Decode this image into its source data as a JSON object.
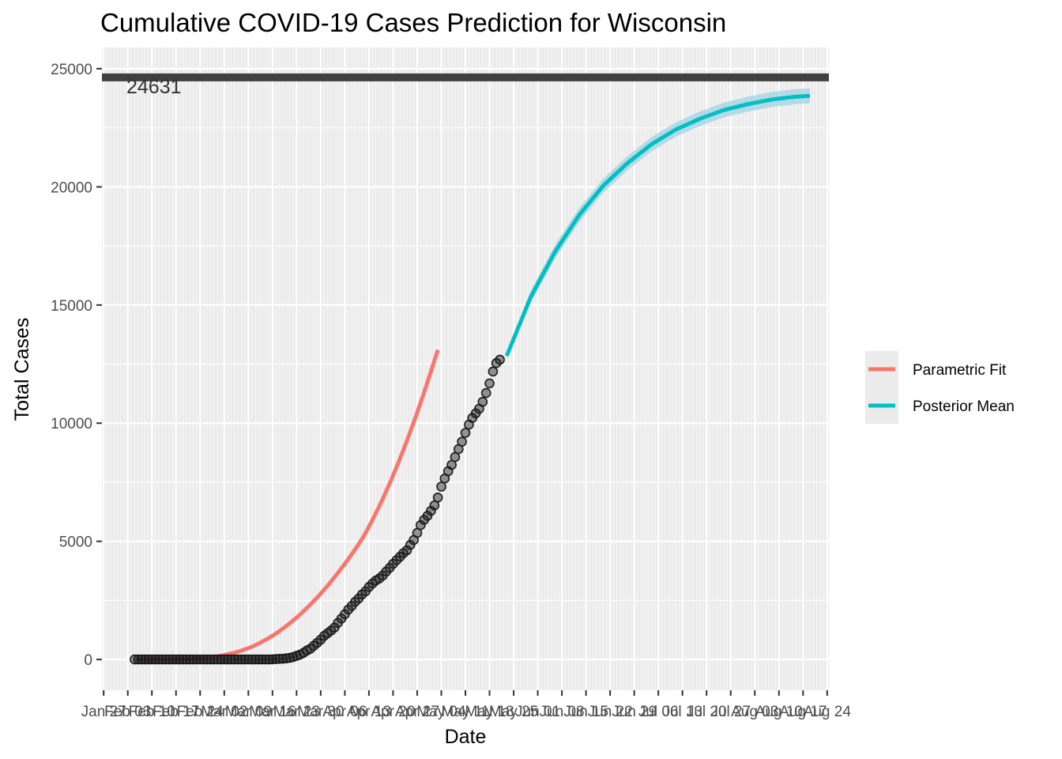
{
  "chart_data": {
    "type": "line",
    "title": "Cumulative COVID-19 Cases Prediction for Wisconsin",
    "xlabel": "Date",
    "ylabel": "Total Cases",
    "ylim": [
      -1300,
      25900
    ],
    "xlim_days_from_jan27": [
      -0.5,
      210.5
    ],
    "y_ticks": [
      0,
      5000,
      10000,
      15000,
      20000,
      25000
    ],
    "y_tick_labels": [
      "0",
      "5000",
      "10000",
      "15000",
      "20000",
      "25000"
    ],
    "x_ticks": [
      {
        "date": "2020-01-27",
        "label": "Jan 27"
      },
      {
        "date": "2020-02-03",
        "label": "Feb 03"
      },
      {
        "date": "2020-02-10",
        "label": "Feb 10"
      },
      {
        "date": "2020-02-17",
        "label": "Feb 17"
      },
      {
        "date": "2020-02-24",
        "label": "Feb 24"
      },
      {
        "date": "2020-03-02",
        "label": "Mar 02"
      },
      {
        "date": "2020-03-09",
        "label": "Mar 09"
      },
      {
        "date": "2020-03-16",
        "label": "Mar 16"
      },
      {
        "date": "2020-03-23",
        "label": "Mar 23"
      },
      {
        "date": "2020-03-30",
        "label": "Mar 30"
      },
      {
        "date": "2020-04-06",
        "label": "Apr 06"
      },
      {
        "date": "2020-04-13",
        "label": "Apr 13"
      },
      {
        "date": "2020-04-20",
        "label": "Apr 20"
      },
      {
        "date": "2020-04-27",
        "label": "Apr 27"
      },
      {
        "date": "2020-05-04",
        "label": "May 04"
      },
      {
        "date": "2020-05-11",
        "label": "May 11"
      },
      {
        "date": "2020-05-18",
        "label": "May 18"
      },
      {
        "date": "2020-05-25",
        "label": "May 25"
      },
      {
        "date": "2020-06-01",
        "label": "Jun 01"
      },
      {
        "date": "2020-06-08",
        "label": "Jun 08"
      },
      {
        "date": "2020-06-15",
        "label": "Jun 15"
      },
      {
        "date": "2020-06-22",
        "label": "Jun 22"
      },
      {
        "date": "2020-06-29",
        "label": "Jun 29"
      },
      {
        "date": "2020-07-06",
        "label": "Jul 06"
      },
      {
        "date": "2020-07-13",
        "label": "Jul 13"
      },
      {
        "date": "2020-07-20",
        "label": "Jul 20"
      },
      {
        "date": "2020-07-27",
        "label": "Jul 27"
      },
      {
        "date": "2020-08-03",
        "label": "Aug 03"
      },
      {
        "date": "2020-08-10",
        "label": "Aug 10"
      },
      {
        "date": "2020-08-17",
        "label": "Aug 17"
      },
      {
        "date": "2020-08-24",
        "label": "Aug 24"
      }
    ],
    "hline": {
      "value": 24631,
      "label": "24631",
      "color": "#404040"
    },
    "legend": {
      "placement": "right",
      "entries": [
        {
          "label": "Parametric Fit",
          "color": "#F8766D"
        },
        {
          "label": "Posterior Mean",
          "color": "#00BFC4"
        }
      ]
    },
    "colors": {
      "panel_background": "#EBEBEB",
      "grid": "#FFFFFF",
      "observed_points": "#1a1a1a",
      "ribbon": "#9fd3e3"
    },
    "series": [
      {
        "name": "Observed",
        "kind": "points",
        "x_start_date": "2020-02-05",
        "step_days": 1,
        "values": [
          0,
          0,
          0,
          0,
          0,
          0,
          0,
          0,
          0,
          0,
          0,
          0,
          0,
          0,
          0,
          0,
          0,
          0,
          0,
          0,
          0,
          0,
          0,
          0,
          0,
          0,
          0,
          0,
          0,
          0,
          0,
          0,
          0,
          0,
          0,
          0,
          0,
          0,
          0,
          3,
          8,
          19,
          27,
          33,
          47,
          72,
          106,
          155,
          206,
          281,
          381,
          457,
          585,
          707,
          842,
          1000,
          1112,
          1221,
          1351,
          1550,
          1730,
          1916,
          2112,
          2267,
          2440,
          2578,
          2756,
          2885,
          3068,
          3213,
          3341,
          3428,
          3555,
          3721,
          3875,
          4045,
          4199,
          4346,
          4499,
          4620,
          4845,
          5052,
          5356,
          5687,
          5911,
          6081,
          6289,
          6520,
          6854,
          7314,
          7660,
          7964,
          8236,
          8566,
          8901,
          9215,
          9590,
          9939,
          10219,
          10418,
          10611,
          10902,
          11275,
          11685,
          12187,
          12543,
          12687
        ]
      },
      {
        "name": "Parametric Fit",
        "kind": "line",
        "x_start_date": "2020-02-05",
        "step_days": 1,
        "values": [
          0,
          0,
          0,
          0,
          0,
          1,
          1,
          2,
          3,
          4,
          5,
          7,
          9,
          12,
          16,
          20,
          26,
          33,
          42,
          52,
          65,
          80,
          97,
          116,
          138,
          163,
          190,
          220,
          253,
          290,
          330,
          375,
          425,
          480,
          540,
          605,
          675,
          750,
          830,
          915,
          1005,
          1100,
          1200,
          1305,
          1415,
          1530,
          1650,
          1775,
          1905,
          2040,
          2180,
          2325,
          2475,
          2630,
          2790,
          2955,
          3125,
          3300,
          3480,
          3665,
          3855,
          4050,
          4250,
          4455,
          4665,
          4880,
          5100,
          5350,
          5620,
          5900,
          6190,
          6490,
          6800,
          7120,
          7450,
          7790,
          8140,
          8500,
          8870,
          9250,
          9640,
          10040,
          10450,
          10870,
          11300,
          11740,
          12190,
          12650,
          13100
        ]
      },
      {
        "name": "Posterior Mean",
        "kind": "line_with_ribbon",
        "x": [
          "2020-05-23",
          "2020-05-30",
          "2020-06-06",
          "2020-06-13",
          "2020-06-20",
          "2020-06-27",
          "2020-07-04",
          "2020-07-11",
          "2020-07-18",
          "2020-07-25",
          "2020-08-01",
          "2020-08-08",
          "2020-08-15",
          "2020-08-19"
        ],
        "values": [
          12850,
          15350,
          17250,
          18800,
          20050,
          21000,
          21800,
          22420,
          22880,
          23250,
          23500,
          23700,
          23820,
          23850
        ],
        "lower": [
          12700,
          15100,
          16950,
          18500,
          19750,
          20700,
          21500,
          22120,
          22570,
          22940,
          23180,
          23380,
          23500,
          23530
        ],
        "upper": [
          13000,
          15600,
          17550,
          19100,
          20350,
          21300,
          22100,
          22720,
          23190,
          23560,
          23820,
          24020,
          24140,
          24170
        ]
      }
    ]
  }
}
